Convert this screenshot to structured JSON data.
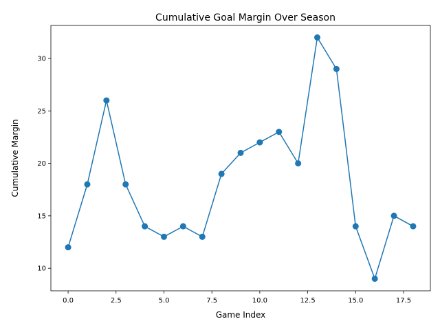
{
  "chart_data": {
    "type": "line",
    "title": "Cumulative Goal Margin Over Season",
    "xlabel": "Game Index",
    "ylabel": "Cumulative Margin",
    "x": [
      0,
      1,
      2,
      3,
      4,
      5,
      6,
      7,
      8,
      9,
      10,
      11,
      12,
      13,
      14,
      15,
      16,
      17,
      18
    ],
    "series": [
      {
        "values": [
          12,
          18,
          26,
          18,
          14,
          13,
          14,
          13,
          19,
          21,
          22,
          23,
          20,
          32,
          29,
          14,
          9,
          15,
          14
        ],
        "color": "#1f77b4",
        "marker": "circle"
      }
    ],
    "xlim": [
      -0.9,
      18.9
    ],
    "ylim": [
      7.85,
      33.15
    ],
    "xticks": [
      0.0,
      2.5,
      5.0,
      7.5,
      10.0,
      12.5,
      15.0,
      17.5
    ],
    "xtick_labels": [
      "0.0",
      "2.5",
      "5.0",
      "7.5",
      "10.0",
      "12.5",
      "15.0",
      "17.5"
    ],
    "yticks": [
      10,
      15,
      20,
      25,
      30
    ],
    "ytick_labels": [
      "10",
      "15",
      "20",
      "25",
      "30"
    ],
    "grid": false,
    "legend": "none"
  }
}
